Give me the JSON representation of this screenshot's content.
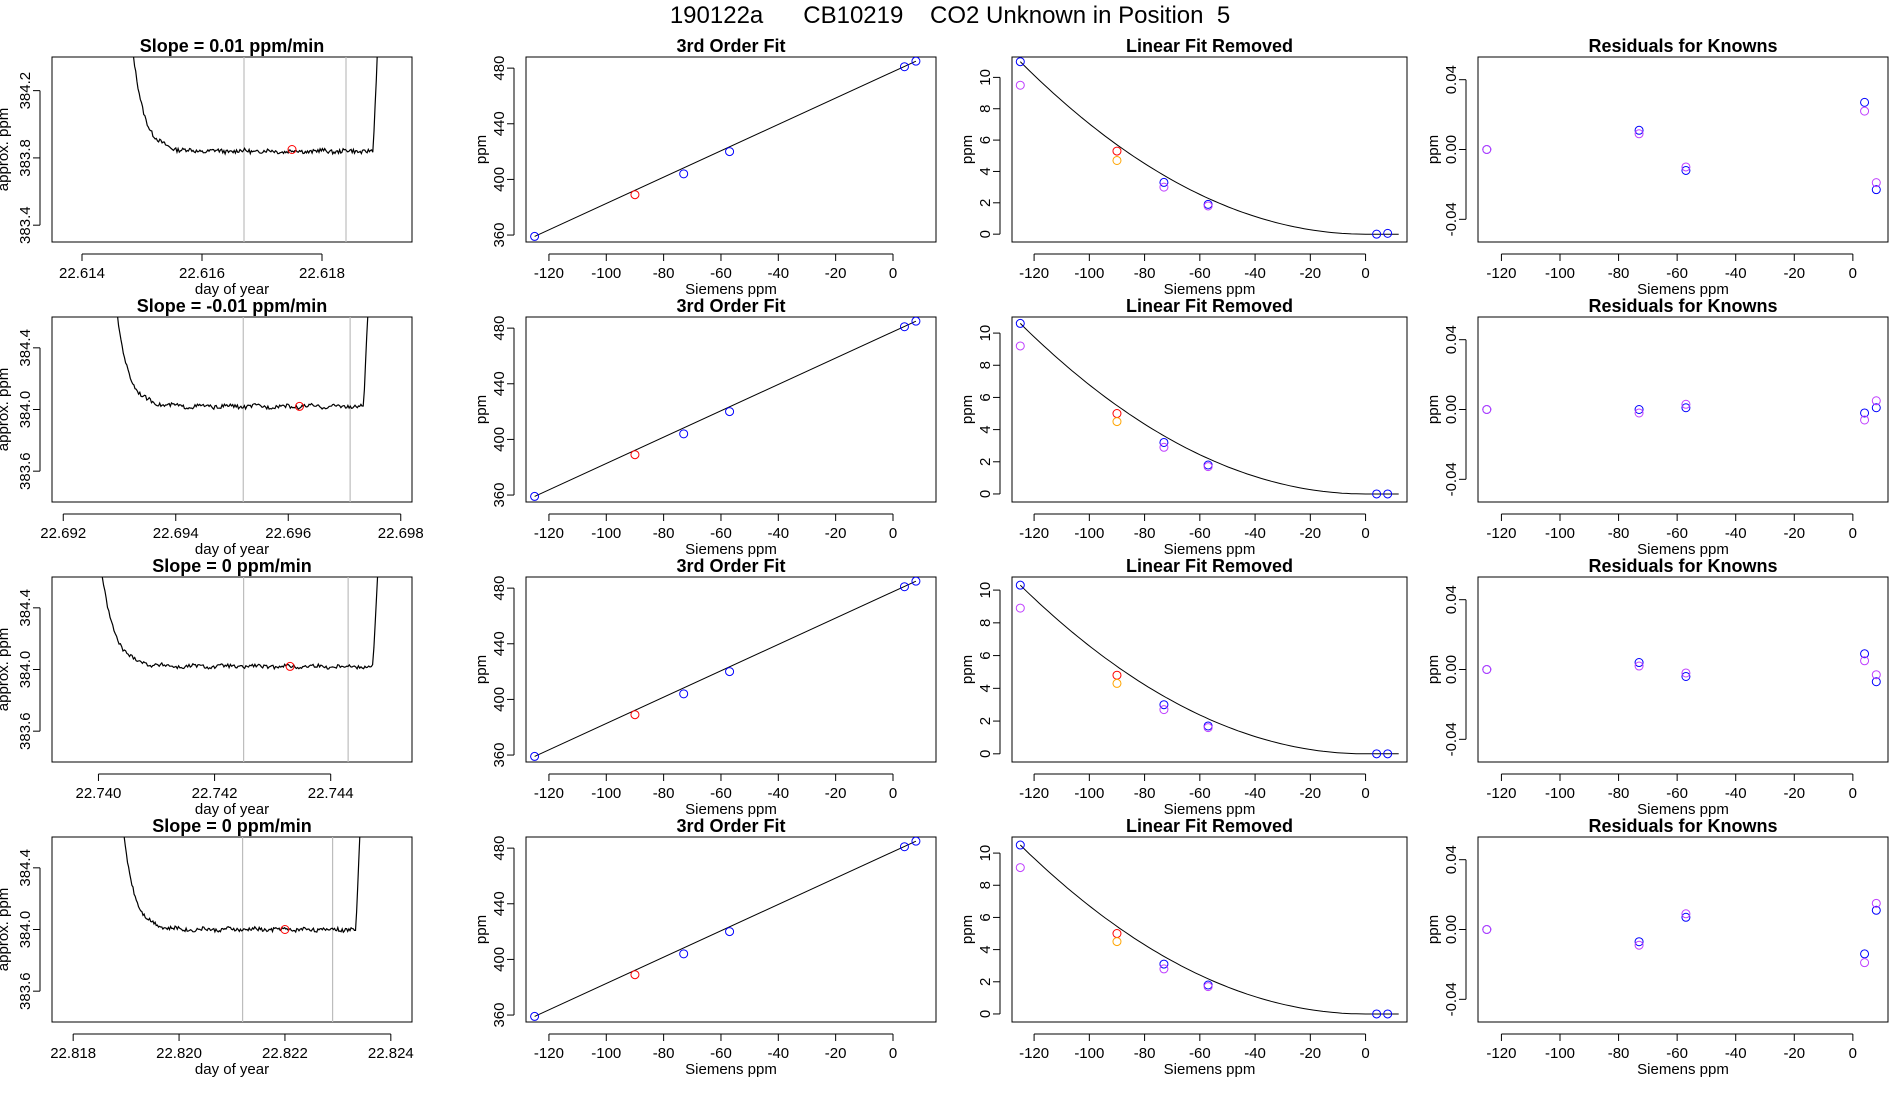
{
  "figure": {
    "title": "190122a      CB10219    CO2 Unknown in Position  5"
  },
  "colors": {
    "trace": "#000000",
    "cycle_marker": "#ff0000",
    "window_lines": "#bdbdbd",
    "blue": "#0000ff",
    "violet": "#bf3eff",
    "orange": "#ffa500"
  },
  "chart_data": [
    {
      "type": "line",
      "title": "Slope =  0.01  ppm/min",
      "xlabel": "day of year",
      "ylabel": "approx. ppm",
      "xlim": [
        22.6135,
        22.6195
      ],
      "ylim": [
        383.3,
        384.4
      ],
      "xticks": [
        "22.614",
        "22.616",
        "22.618"
      ],
      "yticks": [
        "383.4",
        "383.8",
        "384.2"
      ],
      "x_range": [
        22.6148,
        22.619
      ],
      "baseline": 383.84,
      "start": 384.6,
      "end": 384.6,
      "vlines": [
        22.6167,
        22.6184
      ],
      "marker": [
        22.6175,
        383.85
      ]
    },
    {
      "type": "scatter",
      "title": "3rd Order Fit",
      "xlabel": "Siemens ppm",
      "ylabel": "ppm",
      "xlim": [
        -128,
        15
      ],
      "ylim": [
        355,
        488
      ],
      "xticks": [
        "-120",
        "-100",
        "-80",
        "-60",
        "-40",
        "-20",
        "0"
      ],
      "yticks": [
        "360",
        "400",
        "440",
        "480"
      ],
      "fit_line": [
        [
          -125,
          359
        ],
        [
          8,
          485
        ]
      ],
      "points": [
        {
          "x": -125,
          "y": 359,
          "c": "blue"
        },
        {
          "x": -90,
          "y": 389,
          "c": "red"
        },
        {
          "x": -73,
          "y": 404,
          "c": "blue"
        },
        {
          "x": -57,
          "y": 420,
          "c": "blue"
        },
        {
          "x": 4,
          "y": 481,
          "c": "blue"
        },
        {
          "x": 8,
          "y": 485,
          "c": "blue"
        }
      ]
    },
    {
      "type": "scatter",
      "title": "Linear Fit Removed",
      "xlabel": "Siemens ppm",
      "ylabel": "ppm",
      "xlim": [
        -128,
        15
      ],
      "ylim": [
        -0.5,
        11.3
      ],
      "xticks": [
        "-120",
        "-100",
        "-80",
        "-60",
        "-40",
        "-20",
        "0"
      ],
      "yticks": [
        "0",
        "2",
        "4",
        "6",
        "8",
        "10"
      ],
      "curve_vertex": 0,
      "curve_a": 11,
      "curve_x0": -125,
      "points": [
        {
          "x": -125,
          "y": 11,
          "c": "blue"
        },
        {
          "x": -125,
          "y": 9.5,
          "c": "violet"
        },
        {
          "x": -90,
          "y": 5.3,
          "c": "red"
        },
        {
          "x": -90,
          "y": 4.7,
          "c": "orange"
        },
        {
          "x": -73,
          "y": 3.3,
          "c": "blue"
        },
        {
          "x": -73,
          "y": 3.0,
          "c": "violet"
        },
        {
          "x": -57,
          "y": 1.9,
          "c": "blue"
        },
        {
          "x": -57,
          "y": 1.8,
          "c": "violet"
        },
        {
          "x": 4,
          "y": 0,
          "c": "blue"
        },
        {
          "x": 8,
          "y": 0.05,
          "c": "blue"
        }
      ]
    },
    {
      "type": "scatter",
      "title": "Residuals for Knowns",
      "xlabel": "Siemens ppm",
      "ylabel": "ppm",
      "xlim": [
        -128,
        12
      ],
      "ylim": [
        -0.053,
        0.053
      ],
      "xticks": [
        "-120",
        "-100",
        "-80",
        "-60",
        "-40",
        "-20",
        "0"
      ],
      "yticks": [
        "-0.04",
        "0.00",
        "0.04"
      ],
      "points": [
        {
          "x": -125,
          "y": 0.0,
          "c": "blue"
        },
        {
          "x": -125,
          "y": 0.0,
          "c": "violet"
        },
        {
          "x": -73,
          "y": 0.011,
          "c": "blue"
        },
        {
          "x": -73,
          "y": 0.009,
          "c": "violet"
        },
        {
          "x": -57,
          "y": -0.012,
          "c": "blue"
        },
        {
          "x": -57,
          "y": -0.01,
          "c": "violet"
        },
        {
          "x": 4,
          "y": 0.027,
          "c": "blue"
        },
        {
          "x": 4,
          "y": 0.022,
          "c": "violet"
        },
        {
          "x": 8,
          "y": -0.023,
          "c": "blue"
        },
        {
          "x": 8,
          "y": -0.019,
          "c": "violet"
        }
      ]
    },
    {
      "type": "line",
      "title": "Slope =  -0.01  ppm/min",
      "xlabel": "day of year",
      "ylabel": "approx. ppm",
      "xlim": [
        22.6918,
        22.6982
      ],
      "ylim": [
        383.4,
        384.6
      ],
      "xticks": [
        "22.692",
        "22.694",
        "22.696",
        "22.698"
      ],
      "yticks": [
        "383.6",
        "384.0",
        "384.4"
      ],
      "x_range": [
        22.6929,
        22.6975
      ],
      "baseline": 384.02,
      "start": 384.8,
      "end": 384.8,
      "vlines": [
        22.6952,
        22.6971
      ],
      "marker": [
        22.6962,
        384.02
      ]
    },
    {
      "type": "scatter",
      "title": "3rd Order Fit",
      "xlabel": "Siemens ppm",
      "ylabel": "ppm",
      "xlim": [
        -128,
        15
      ],
      "ylim": [
        355,
        488
      ],
      "xticks": [
        "-120",
        "-100",
        "-80",
        "-60",
        "-40",
        "-20",
        "0"
      ],
      "yticks": [
        "360",
        "400",
        "440",
        "480"
      ],
      "fit_line": [
        [
          -125,
          359
        ],
        [
          8,
          485
        ]
      ],
      "points": [
        {
          "x": -125,
          "y": 359,
          "c": "blue"
        },
        {
          "x": -90,
          "y": 389,
          "c": "red"
        },
        {
          "x": -73,
          "y": 404,
          "c": "blue"
        },
        {
          "x": -57,
          "y": 420,
          "c": "blue"
        },
        {
          "x": 4,
          "y": 481,
          "c": "blue"
        },
        {
          "x": 8,
          "y": 485,
          "c": "blue"
        }
      ]
    },
    {
      "type": "scatter",
      "title": "Linear Fit Removed",
      "xlabel": "Siemens ppm",
      "ylabel": "ppm",
      "xlim": [
        -128,
        15
      ],
      "ylim": [
        -0.5,
        11.0
      ],
      "xticks": [
        "-120",
        "-100",
        "-80",
        "-60",
        "-40",
        "-20",
        "0"
      ],
      "yticks": [
        "0",
        "2",
        "4",
        "6",
        "8",
        "10"
      ],
      "curve_vertex": 0,
      "curve_a": 10.6,
      "curve_x0": -125,
      "points": [
        {
          "x": -125,
          "y": 10.6,
          "c": "blue"
        },
        {
          "x": -125,
          "y": 9.2,
          "c": "violet"
        },
        {
          "x": -90,
          "y": 5.0,
          "c": "red"
        },
        {
          "x": -90,
          "y": 4.5,
          "c": "orange"
        },
        {
          "x": -73,
          "y": 3.2,
          "c": "blue"
        },
        {
          "x": -73,
          "y": 2.9,
          "c": "violet"
        },
        {
          "x": -57,
          "y": 1.8,
          "c": "blue"
        },
        {
          "x": -57,
          "y": 1.7,
          "c": "violet"
        },
        {
          "x": 4,
          "y": 0,
          "c": "blue"
        },
        {
          "x": 8,
          "y": 0,
          "c": "blue"
        }
      ]
    },
    {
      "type": "scatter",
      "title": "Residuals for Knowns",
      "xlabel": "Siemens ppm",
      "ylabel": "ppm",
      "xlim": [
        -128,
        12
      ],
      "ylim": [
        -0.053,
        0.053
      ],
      "xticks": [
        "-120",
        "-100",
        "-80",
        "-60",
        "-40",
        "-20",
        "0"
      ],
      "yticks": [
        "-0.04",
        "0.00",
        "0.04"
      ],
      "points": [
        {
          "x": -125,
          "y": 0.0,
          "c": "blue"
        },
        {
          "x": -125,
          "y": 0.0,
          "c": "violet"
        },
        {
          "x": -73,
          "y": 0.0,
          "c": "blue"
        },
        {
          "x": -73,
          "y": -0.002,
          "c": "violet"
        },
        {
          "x": -57,
          "y": 0.001,
          "c": "blue"
        },
        {
          "x": -57,
          "y": 0.003,
          "c": "violet"
        },
        {
          "x": 4,
          "y": -0.002,
          "c": "blue"
        },
        {
          "x": 4,
          "y": -0.006,
          "c": "violet"
        },
        {
          "x": 8,
          "y": 0.001,
          "c": "blue"
        },
        {
          "x": 8,
          "y": 0.005,
          "c": "violet"
        }
      ]
    },
    {
      "type": "line",
      "title": "Slope =  0  ppm/min",
      "xlabel": "day of year",
      "ylabel": "approx. ppm",
      "xlim": [
        22.7392,
        22.7454
      ],
      "ylim": [
        383.4,
        384.6
      ],
      "xticks": [
        "22.740",
        "22.742",
        "22.744"
      ],
      "yticks": [
        "383.6",
        "384.0",
        "384.4"
      ],
      "x_range": [
        22.74,
        22.7449
      ],
      "baseline": 384.02,
      "start": 384.8,
      "end": 384.8,
      "vlines": [
        22.7425,
        22.7443
      ],
      "marker": [
        22.7433,
        384.02
      ]
    },
    {
      "type": "scatter",
      "title": "3rd Order Fit",
      "xlabel": "Siemens ppm",
      "ylabel": "ppm",
      "xlim": [
        -128,
        15
      ],
      "ylim": [
        355,
        488
      ],
      "xticks": [
        "-120",
        "-100",
        "-80",
        "-60",
        "-40",
        "-20",
        "0"
      ],
      "yticks": [
        "360",
        "400",
        "440",
        "480"
      ],
      "fit_line": [
        [
          -125,
          359
        ],
        [
          8,
          485
        ]
      ],
      "points": [
        {
          "x": -125,
          "y": 359,
          "c": "blue"
        },
        {
          "x": -90,
          "y": 389,
          "c": "red"
        },
        {
          "x": -73,
          "y": 404,
          "c": "blue"
        },
        {
          "x": -57,
          "y": 420,
          "c": "blue"
        },
        {
          "x": 4,
          "y": 481,
          "c": "blue"
        },
        {
          "x": 8,
          "y": 485,
          "c": "blue"
        }
      ]
    },
    {
      "type": "scatter",
      "title": "Linear Fit Removed",
      "xlabel": "Siemens ppm",
      "ylabel": "ppm",
      "xlim": [
        -128,
        15
      ],
      "ylim": [
        -0.5,
        10.8
      ],
      "xticks": [
        "-120",
        "-100",
        "-80",
        "-60",
        "-40",
        "-20",
        "0"
      ],
      "yticks": [
        "0",
        "2",
        "4",
        "6",
        "8",
        "10"
      ],
      "curve_vertex": 0,
      "curve_a": 10.3,
      "curve_x0": -125,
      "points": [
        {
          "x": -125,
          "y": 10.3,
          "c": "blue"
        },
        {
          "x": -125,
          "y": 8.9,
          "c": "violet"
        },
        {
          "x": -90,
          "y": 4.8,
          "c": "red"
        },
        {
          "x": -90,
          "y": 4.3,
          "c": "orange"
        },
        {
          "x": -73,
          "y": 3.0,
          "c": "blue"
        },
        {
          "x": -73,
          "y": 2.7,
          "c": "violet"
        },
        {
          "x": -57,
          "y": 1.7,
          "c": "blue"
        },
        {
          "x": -57,
          "y": 1.6,
          "c": "violet"
        },
        {
          "x": 4,
          "y": 0,
          "c": "blue"
        },
        {
          "x": 8,
          "y": 0,
          "c": "blue"
        }
      ]
    },
    {
      "type": "scatter",
      "title": "Residuals for Knowns",
      "xlabel": "Siemens ppm",
      "ylabel": "ppm",
      "xlim": [
        -128,
        12
      ],
      "ylim": [
        -0.053,
        0.053
      ],
      "xticks": [
        "-120",
        "-100",
        "-80",
        "-60",
        "-40",
        "-20",
        "0"
      ],
      "yticks": [
        "-0.04",
        "0.00",
        "0.04"
      ],
      "points": [
        {
          "x": -125,
          "y": 0.0,
          "c": "blue"
        },
        {
          "x": -125,
          "y": 0.0,
          "c": "violet"
        },
        {
          "x": -73,
          "y": 0.004,
          "c": "blue"
        },
        {
          "x": -73,
          "y": 0.002,
          "c": "violet"
        },
        {
          "x": -57,
          "y": -0.004,
          "c": "blue"
        },
        {
          "x": -57,
          "y": -0.002,
          "c": "violet"
        },
        {
          "x": 4,
          "y": 0.009,
          "c": "blue"
        },
        {
          "x": 4,
          "y": 0.005,
          "c": "violet"
        },
        {
          "x": 8,
          "y": -0.007,
          "c": "blue"
        },
        {
          "x": 8,
          "y": -0.003,
          "c": "violet"
        }
      ]
    },
    {
      "type": "line",
      "title": "Slope =  0  ppm/min",
      "xlabel": "day of year",
      "ylabel": "approx. ppm",
      "xlim": [
        22.8176,
        22.8244
      ],
      "ylim": [
        383.4,
        384.6
      ],
      "xticks": [
        "22.818",
        "22.820",
        "22.822",
        "22.824"
      ],
      "yticks": [
        "383.6",
        "384.0",
        "384.4"
      ],
      "x_range": [
        22.8189,
        22.8235
      ],
      "baseline": 384.0,
      "start": 384.8,
      "end": 384.8,
      "vlines": [
        22.8212,
        22.8229
      ],
      "marker": [
        22.822,
        384.0
      ]
    },
    {
      "type": "scatter",
      "title": "3rd Order Fit",
      "xlabel": "Siemens ppm",
      "ylabel": "ppm",
      "xlim": [
        -128,
        15
      ],
      "ylim": [
        355,
        488
      ],
      "xticks": [
        "-120",
        "-100",
        "-80",
        "-60",
        "-40",
        "-20",
        "0"
      ],
      "yticks": [
        "360",
        "400",
        "440",
        "480"
      ],
      "fit_line": [
        [
          -125,
          359
        ],
        [
          8,
          485
        ]
      ],
      "points": [
        {
          "x": -125,
          "y": 359,
          "c": "blue"
        },
        {
          "x": -90,
          "y": 389,
          "c": "red"
        },
        {
          "x": -73,
          "y": 404,
          "c": "blue"
        },
        {
          "x": -57,
          "y": 420,
          "c": "blue"
        },
        {
          "x": 4,
          "y": 481,
          "c": "blue"
        },
        {
          "x": 8,
          "y": 485,
          "c": "blue"
        }
      ]
    },
    {
      "type": "scatter",
      "title": "Linear Fit Removed",
      "xlabel": "Siemens ppm",
      "ylabel": "ppm",
      "xlim": [
        -128,
        15
      ],
      "ylim": [
        -0.5,
        11.0
      ],
      "xticks": [
        "-120",
        "-100",
        "-80",
        "-60",
        "-40",
        "-20",
        "0"
      ],
      "yticks": [
        "0",
        "2",
        "4",
        "6",
        "8",
        "10"
      ],
      "curve_vertex": 0,
      "curve_a": 10.5,
      "curve_x0": -125,
      "points": [
        {
          "x": -125,
          "y": 10.5,
          "c": "blue"
        },
        {
          "x": -125,
          "y": 9.1,
          "c": "violet"
        },
        {
          "x": -90,
          "y": 5.0,
          "c": "red"
        },
        {
          "x": -90,
          "y": 4.5,
          "c": "orange"
        },
        {
          "x": -73,
          "y": 3.1,
          "c": "blue"
        },
        {
          "x": -73,
          "y": 2.8,
          "c": "violet"
        },
        {
          "x": -57,
          "y": 1.8,
          "c": "blue"
        },
        {
          "x": -57,
          "y": 1.7,
          "c": "violet"
        },
        {
          "x": 4,
          "y": 0,
          "c": "blue"
        },
        {
          "x": 8,
          "y": 0,
          "c": "blue"
        }
      ]
    },
    {
      "type": "scatter",
      "title": "Residuals for Knowns",
      "xlabel": "Siemens ppm",
      "ylabel": "ppm",
      "xlim": [
        -128,
        12
      ],
      "ylim": [
        -0.053,
        0.053
      ],
      "xticks": [
        "-120",
        "-100",
        "-80",
        "-60",
        "-40",
        "-20",
        "0"
      ],
      "yticks": [
        "-0.04",
        "0.00",
        "0.04"
      ],
      "points": [
        {
          "x": -125,
          "y": 0.0,
          "c": "blue"
        },
        {
          "x": -125,
          "y": 0.0,
          "c": "violet"
        },
        {
          "x": -73,
          "y": -0.007,
          "c": "blue"
        },
        {
          "x": -73,
          "y": -0.009,
          "c": "violet"
        },
        {
          "x": -57,
          "y": 0.007,
          "c": "blue"
        },
        {
          "x": -57,
          "y": 0.009,
          "c": "violet"
        },
        {
          "x": 4,
          "y": -0.014,
          "c": "blue"
        },
        {
          "x": 4,
          "y": -0.019,
          "c": "violet"
        },
        {
          "x": 8,
          "y": 0.011,
          "c": "blue"
        },
        {
          "x": 8,
          "y": 0.015,
          "c": "violet"
        }
      ]
    }
  ]
}
